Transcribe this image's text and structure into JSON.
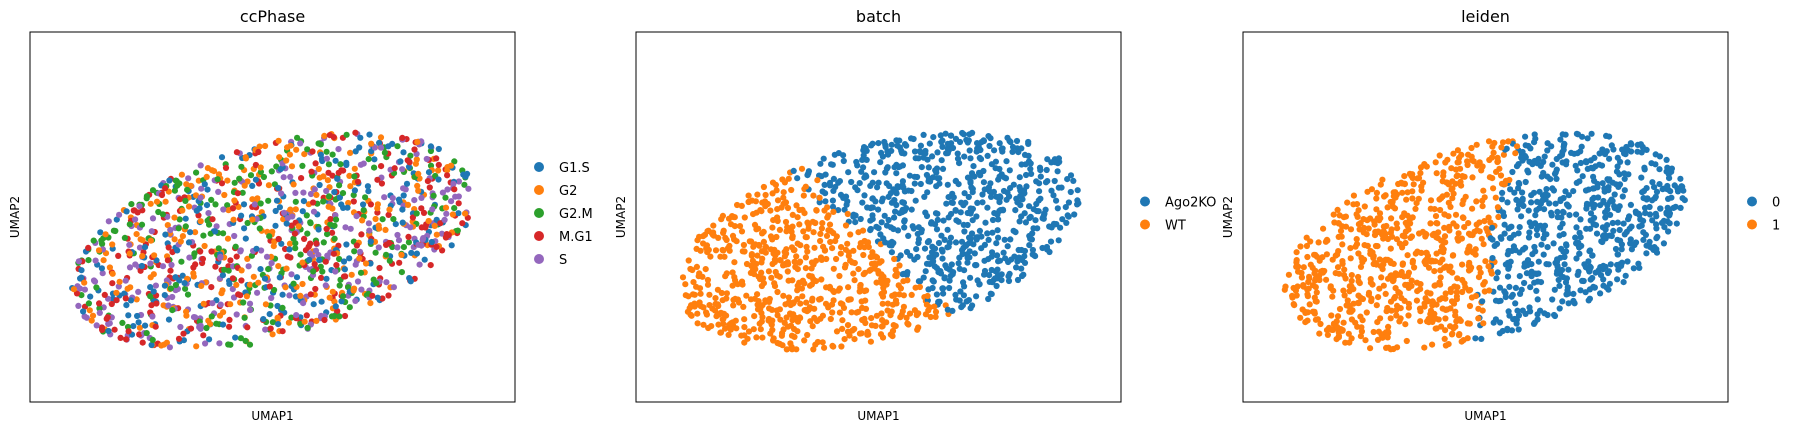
{
  "chart_data": [
    {
      "type": "scatter",
      "title": "ccPhase",
      "xlabel": "UMAP1",
      "ylabel": "UMAP2",
      "legend_position": "right",
      "grid": false,
      "categories": [
        {
          "label": "G1.S",
          "color": "#1f77b4"
        },
        {
          "label": "G2",
          "color": "#ff7f0e"
        },
        {
          "label": "G2.M",
          "color": "#2ca02c"
        },
        {
          "label": "M.G1",
          "color": "#d62728"
        },
        {
          "label": "S",
          "color": "#9467bd"
        }
      ],
      "coloring": "mixed",
      "n_points": 1300,
      "seed": 11
    },
    {
      "type": "scatter",
      "title": "batch",
      "xlabel": "UMAP1",
      "ylabel": "UMAP2",
      "legend_position": "right",
      "grid": false,
      "categories": [
        {
          "label": "Ago2KO",
          "color": "#1f77b4"
        },
        {
          "label": "WT",
          "color": "#ff7f0e"
        }
      ],
      "coloring": "diagonal_split",
      "n_points": 1300,
      "seed": 23
    },
    {
      "type": "scatter",
      "title": "leiden",
      "xlabel": "UMAP1",
      "ylabel": "UMAP2",
      "legend_position": "right",
      "grid": false,
      "categories": [
        {
          "label": "0",
          "color": "#1f77b4"
        },
        {
          "label": "1",
          "color": "#ff7f0e"
        }
      ],
      "coloring": "vertical_split",
      "n_points": 1300,
      "seed": 37
    }
  ]
}
